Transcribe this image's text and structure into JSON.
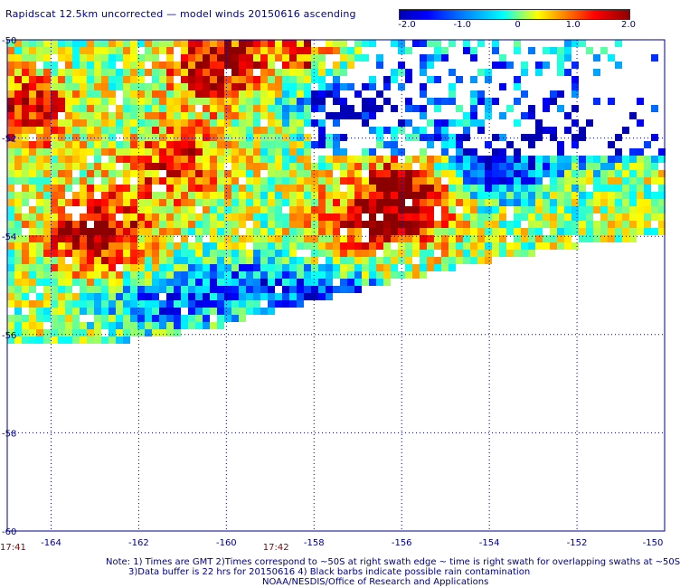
{
  "title": "Rapidscat 12.5km uncorrected — model winds 20150616 ascending",
  "colorbar": {
    "ticks": [
      "-2.0",
      "-1.0",
      "0",
      "1.0",
      "2.0"
    ],
    "range": [
      -2.0,
      2.0
    ],
    "colors": [
      "#0000b4",
      "#0000ff",
      "#0080ff",
      "#00ffff",
      "#80ff80",
      "#ffff00",
      "#ff8000",
      "#ff0000",
      "#8b0000"
    ]
  },
  "axes": {
    "x_ticks": [
      "-164",
      "-162",
      "-160",
      "-158",
      "-156",
      "-154",
      "-152",
      "-150"
    ],
    "x_values": [
      -164,
      -162,
      -160,
      -158,
      -156,
      -154,
      -152,
      -150
    ],
    "y_ticks": [
      "-50",
      "-52",
      "-54",
      "-56",
      "-58",
      "-60"
    ],
    "y_values": [
      -50,
      -52,
      -54,
      -56,
      -58,
      -60
    ],
    "xlim": [
      -165,
      -150
    ],
    "ylim": [
      -60,
      -50
    ]
  },
  "times": [
    {
      "label": "17:41",
      "x": -165
    },
    {
      "label": "17:42",
      "x": -159
    }
  ],
  "notes": {
    "line1": "Note: 1) Times are GMT 2)Times correspond to ~50S at right swath edge ~ time is right swath for overlapping swaths at ~50S",
    "line2": "3)Data buffer is 22 hrs for 20150616 4) Black barbs indicate possible rain contamination",
    "line3": "NOAA/NESDIS/Office of Research and Applications"
  },
  "swath": {
    "bottom_edge": [
      [
        -165,
        -56.4
      ],
      [
        -162,
        -56.1
      ],
      [
        -160,
        -55.8
      ],
      [
        -158,
        -55.3
      ],
      [
        -156,
        -54.9
      ],
      [
        -154,
        -54.5
      ],
      [
        -152,
        -54.2
      ],
      [
        -150.2,
        -54.0
      ]
    ],
    "hotspots": [
      {
        "lon": -163.0,
        "lat": -53.9,
        "value": 2.0
      },
      {
        "lon": -155.9,
        "lat": -53.2,
        "value": 2.0
      },
      {
        "lon": -160.2,
        "lat": -50.5,
        "value": 1.8
      },
      {
        "lon": -157.6,
        "lat": -50.4,
        "value": 1.6
      },
      {
        "lon": -164.6,
        "lat": -51.5,
        "value": 1.5
      },
      {
        "lon": -161.2,
        "lat": -52.5,
        "value": 1.3
      },
      {
        "lon": -157.0,
        "lat": -53.8,
        "value": 0.9
      }
    ],
    "coldspots": [
      {
        "lon": -151.5,
        "lat": -51.8,
        "value": -2.0
      },
      {
        "lon": -153.8,
        "lat": -52.6,
        "value": -1.8
      },
      {
        "lon": -157.3,
        "lat": -51.2,
        "value": -1.8
      },
      {
        "lon": -159.5,
        "lat": -55.0,
        "value": -1.2
      },
      {
        "lon": -157.5,
        "lat": -55.3,
        "value": -1.6
      },
      {
        "lon": -161.5,
        "lat": -55.4,
        "value": -1.2
      }
    ]
  }
}
